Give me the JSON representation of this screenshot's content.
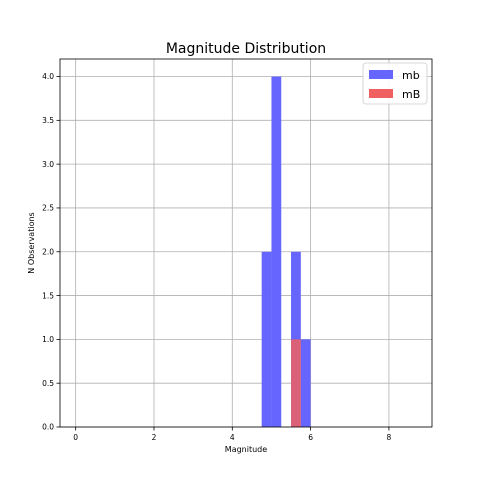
{
  "chart_data": {
    "type": "bar",
    "title": "Magnitude Distribution",
    "xlabel": "Magnitude",
    "ylabel": "N Observations",
    "xlim": [
      -0.4,
      9.1
    ],
    "ylim": [
      0,
      4.2
    ],
    "xticks": [
      0,
      2,
      4,
      6,
      8
    ],
    "yticks": [
      0.0,
      0.5,
      1.0,
      1.5,
      2.0,
      2.5,
      3.0,
      3.5,
      4.0
    ],
    "grid": true,
    "legend_position": "top-right",
    "bin_width": 0.25,
    "series": [
      {
        "name": "mb",
        "color": "#6666ff",
        "bins": [
          {
            "x0": 4.75,
            "count": 2
          },
          {
            "x0": 5.0,
            "count": 4
          },
          {
            "x0": 5.5,
            "count": 2
          },
          {
            "x0": 5.75,
            "count": 1
          }
        ]
      },
      {
        "name": "mB",
        "color": "#f06060",
        "bins": [
          {
            "x0": 5.5,
            "count": 1
          }
        ]
      }
    ]
  }
}
